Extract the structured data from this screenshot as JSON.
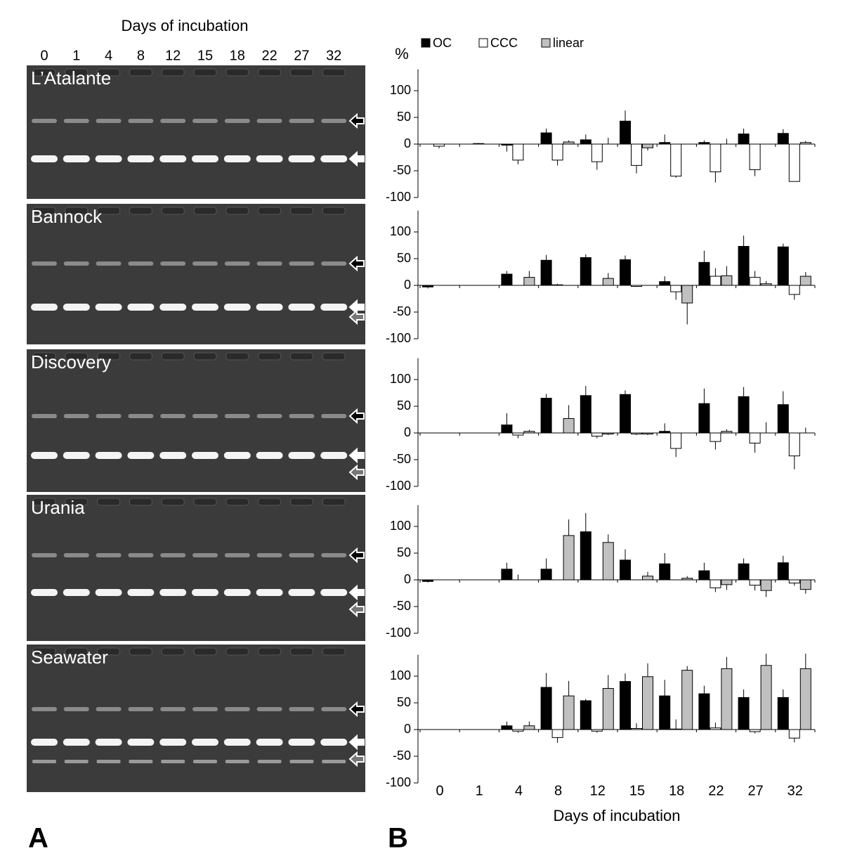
{
  "panel_a": {
    "label": "A",
    "title": "Days of incubation",
    "lanes": [
      "0",
      "1",
      "4",
      "8",
      "12",
      "15",
      "18",
      "22",
      "27",
      "32"
    ],
    "gels": [
      "L’Atalante",
      "Bannock",
      "Discovery",
      "Urania",
      "Seawater"
    ]
  },
  "panel_b": {
    "label": "B"
  },
  "chart_data": [
    {
      "type": "bar",
      "ylabel": "%",
      "ylim": [
        -100,
        140
      ],
      "yticks": [
        -100,
        -50,
        0,
        50,
        100
      ],
      "series": [
        {
          "name": "OC",
          "color": "#000000",
          "values": [
            0,
            0,
            -2,
            21,
            8,
            43,
            3,
            3,
            19,
            20
          ],
          "errors": [
            0,
            0,
            12,
            8,
            10,
            20,
            15,
            4,
            10,
            8
          ]
        },
        {
          "name": "CCC",
          "color": "#ffffff",
          "values": [
            -4,
            1,
            -30,
            -30,
            -33,
            -40,
            -60,
            -52,
            -48,
            -70
          ],
          "errors": [
            4,
            1,
            8,
            10,
            15,
            15,
            3,
            20,
            12,
            0
          ]
        },
        {
          "name": "linear",
          "color": "#c0c0c0",
          "values": [
            0,
            0,
            0,
            4,
            0,
            -7,
            0,
            0,
            0,
            3
          ],
          "errors": [
            0,
            0,
            0,
            3,
            12,
            5,
            0,
            10,
            0,
            3
          ]
        }
      ]
    },
    {
      "type": "bar",
      "ylim": [
        -100,
        140
      ],
      "yticks": [
        -100,
        -50,
        0,
        50,
        100
      ],
      "series": [
        {
          "color": "#000000",
          "values": [
            -3,
            0,
            21,
            47,
            52,
            48,
            7,
            43,
            73,
            72
          ],
          "errors": [
            3,
            0,
            6,
            10,
            6,
            8,
            10,
            22,
            20,
            6
          ]
        },
        {
          "color": "#ffffff",
          "values": [
            0,
            0,
            0,
            1,
            0,
            -2,
            -12,
            17,
            15,
            -17
          ],
          "errors": [
            0,
            0,
            0,
            2,
            0,
            1,
            15,
            15,
            12,
            10
          ]
        },
        {
          "color": "#c0c0c0",
          "values": [
            0,
            0,
            15,
            0,
            13,
            0,
            -33,
            18,
            3,
            17
          ],
          "errors": [
            0,
            0,
            12,
            0,
            10,
            0,
            40,
            18,
            5,
            8
          ]
        }
      ]
    },
    {
      "type": "bar",
      "ylim": [
        -100,
        140
      ],
      "yticks": [
        -100,
        -50,
        0,
        50,
        100
      ],
      "series": [
        {
          "color": "#000000",
          "values": [
            0,
            0,
            15,
            65,
            70,
            72,
            3,
            55,
            68,
            53
          ],
          "errors": [
            0,
            0,
            22,
            8,
            18,
            8,
            15,
            28,
            18,
            25
          ]
        },
        {
          "color": "#ffffff",
          "values": [
            0,
            0,
            -4,
            0,
            -6,
            -2,
            -29,
            -16,
            -19,
            -43
          ],
          "errors": [
            0,
            0,
            6,
            0,
            4,
            2,
            16,
            15,
            18,
            25
          ]
        },
        {
          "color": "#c0c0c0",
          "values": [
            0,
            0,
            3,
            27,
            -2,
            -2,
            0,
            3,
            0,
            0
          ],
          "errors": [
            0,
            0,
            3,
            25,
            2,
            2,
            0,
            4,
            20,
            10
          ]
        }
      ]
    },
    {
      "type": "bar",
      "ylim": [
        -100,
        140
      ],
      "yticks": [
        -100,
        -50,
        0,
        50,
        100
      ],
      "series": [
        {
          "color": "#000000",
          "values": [
            -3,
            0,
            20,
            20,
            90,
            37,
            30,
            17,
            30,
            32
          ],
          "errors": [
            2,
            0,
            12,
            20,
            35,
            20,
            20,
            15,
            10,
            13
          ]
        },
        {
          "color": "#ffffff",
          "values": [
            0,
            0,
            0,
            0,
            0,
            0,
            0,
            -15,
            -10,
            -6
          ],
          "errors": [
            0,
            0,
            10,
            0,
            0,
            0,
            0,
            8,
            10,
            5
          ]
        },
        {
          "color": "#c0c0c0",
          "values": [
            0,
            0,
            0,
            83,
            70,
            7,
            3,
            -9,
            -20,
            -18
          ],
          "errors": [
            0,
            0,
            0,
            30,
            15,
            8,
            4,
            10,
            12,
            8
          ]
        }
      ]
    },
    {
      "type": "bar",
      "xlabel": "Days of incubation",
      "categories": [
        "0",
        "1",
        "4",
        "8",
        "12",
        "15",
        "18",
        "22",
        "27",
        "32"
      ],
      "ylim": [
        -100,
        140
      ],
      "yticks": [
        -100,
        -50,
        0,
        50,
        100
      ],
      "series": [
        {
          "color": "#000000",
          "values": [
            0,
            0,
            7,
            79,
            54,
            90,
            63,
            67,
            60,
            60
          ],
          "errors": [
            0,
            0,
            8,
            27,
            3,
            15,
            30,
            15,
            15,
            15
          ]
        },
        {
          "color": "#ffffff",
          "values": [
            0,
            0,
            -3,
            -15,
            -3,
            2,
            1,
            3,
            -4,
            -16
          ],
          "errors": [
            0,
            0,
            3,
            10,
            3,
            10,
            18,
            10,
            3,
            8
          ]
        },
        {
          "color": "#c0c0c0",
          "values": [
            0,
            0,
            7,
            63,
            77,
            99,
            111,
            114,
            120,
            114
          ],
          "errors": [
            0,
            0,
            8,
            28,
            25,
            25,
            8,
            22,
            22,
            28
          ]
        }
      ]
    }
  ]
}
